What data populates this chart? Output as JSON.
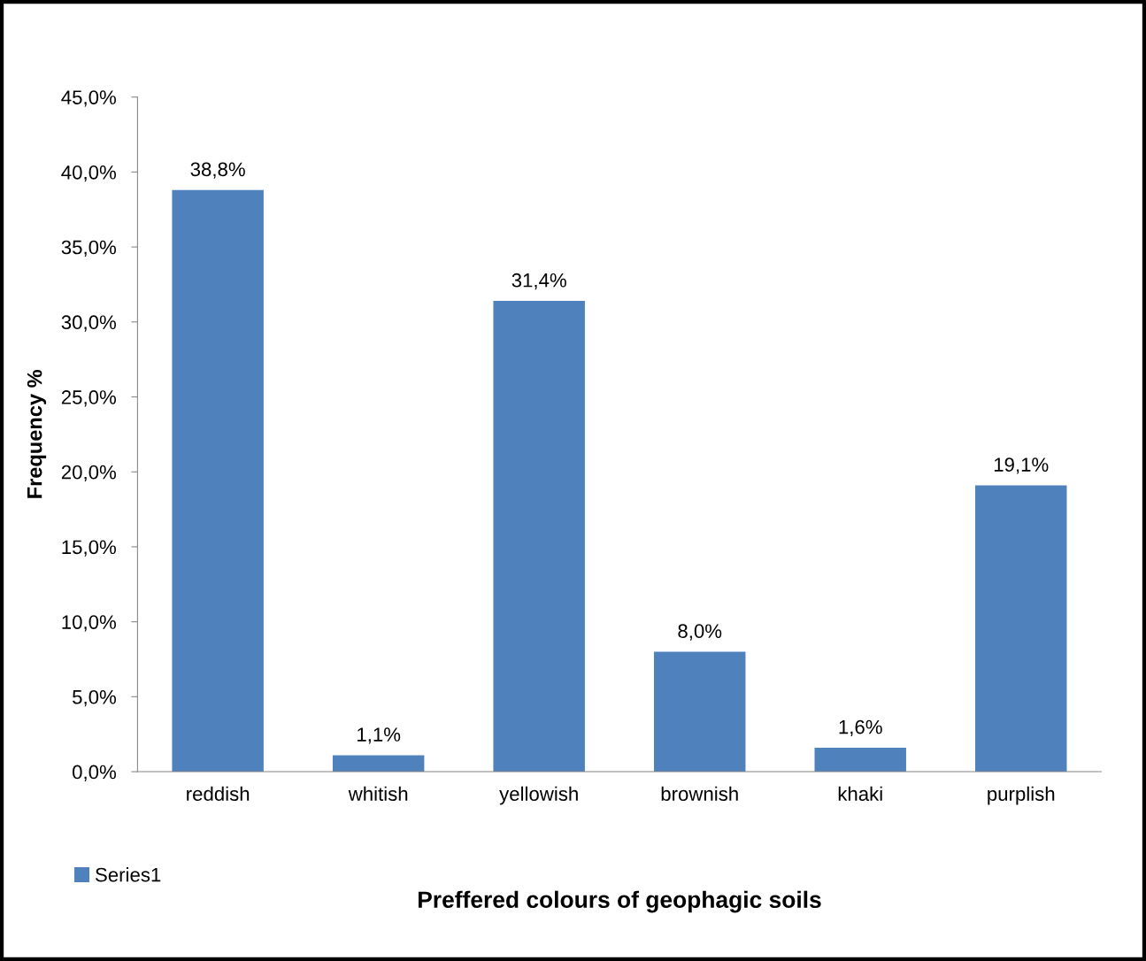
{
  "chart_data": {
    "type": "bar",
    "xlabel": "Preffered colours of geophagic soils",
    "ylabel": "Frequency %",
    "categories": [
      "reddish",
      "whitish",
      "yellowish",
      "brownish",
      "khaki",
      "purplish"
    ],
    "series": [
      {
        "name": "Series1",
        "color": "#4f81bd",
        "values": [
          38.8,
          1.1,
          31.4,
          8.0,
          1.6,
          19.1
        ],
        "value_labels": [
          "38,8%",
          "1,1%",
          "31,4%",
          "8,0%",
          "1,6%",
          "19,1%"
        ]
      }
    ],
    "ylim": [
      0,
      45
    ],
    "yticks": [
      {
        "value": 0,
        "label": "0,0%"
      },
      {
        "value": 5,
        "label": "5,0%"
      },
      {
        "value": 10,
        "label": "10,0%"
      },
      {
        "value": 15,
        "label": "15,0%"
      },
      {
        "value": 20,
        "label": "20,0%"
      },
      {
        "value": 25,
        "label": "25,0%"
      },
      {
        "value": 30,
        "label": "30,0%"
      },
      {
        "value": 35,
        "label": "35,0%"
      },
      {
        "value": 40,
        "label": "40,0%"
      },
      {
        "value": 45,
        "label": "45,0%"
      }
    ],
    "grid": false,
    "legend": "bottom left"
  }
}
